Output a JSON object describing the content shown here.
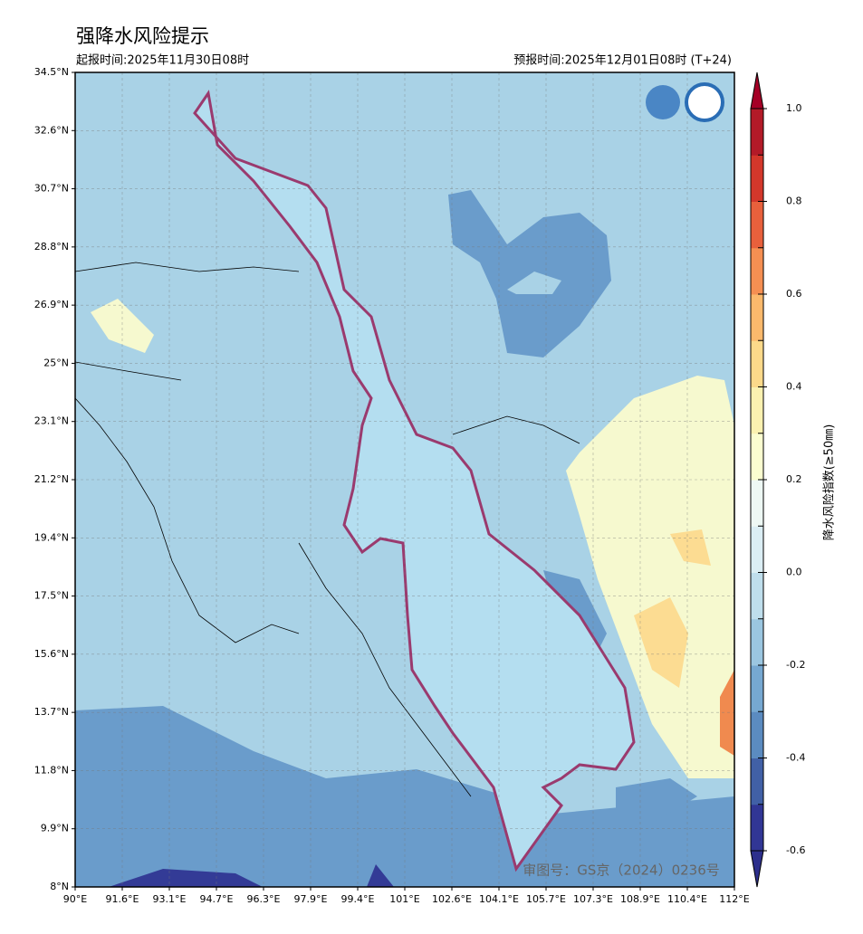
{
  "header": {
    "title": "强降水风险提示",
    "issue_time": "起报时间:2025年11月30日08时",
    "valid_time": "预报时间:2025年12月01日08时 (T+24)"
  },
  "map": {
    "lat_ticks": [
      "34.5°N",
      "32.6°N",
      "30.7°N",
      "28.8°N",
      "26.9°N",
      "25°N",
      "23.1°N",
      "21.2°N",
      "19.4°N",
      "17.5°N",
      "15.6°N",
      "13.7°N",
      "11.8°N",
      "9.9°N",
      "8°N"
    ],
    "lon_ticks": [
      "90°E",
      "91.6°E",
      "93.1°E",
      "94.7°E",
      "96.3°E",
      "97.9°E",
      "99.4°E",
      "101°E",
      "102.6°E",
      "104.1°E",
      "105.7°E",
      "107.3°E",
      "108.9°E",
      "110.4°E",
      "112°E"
    ],
    "watermark": "审图号：GS京（2024）0236号"
  },
  "colorbar": {
    "label": "降水风险指数(≥50㎜)",
    "ticks": [
      "-0.6",
      "-0.4",
      "-0.2",
      "0.0",
      "0.2",
      "0.4",
      "0.6",
      "0.8",
      "1.0"
    ]
  }
}
